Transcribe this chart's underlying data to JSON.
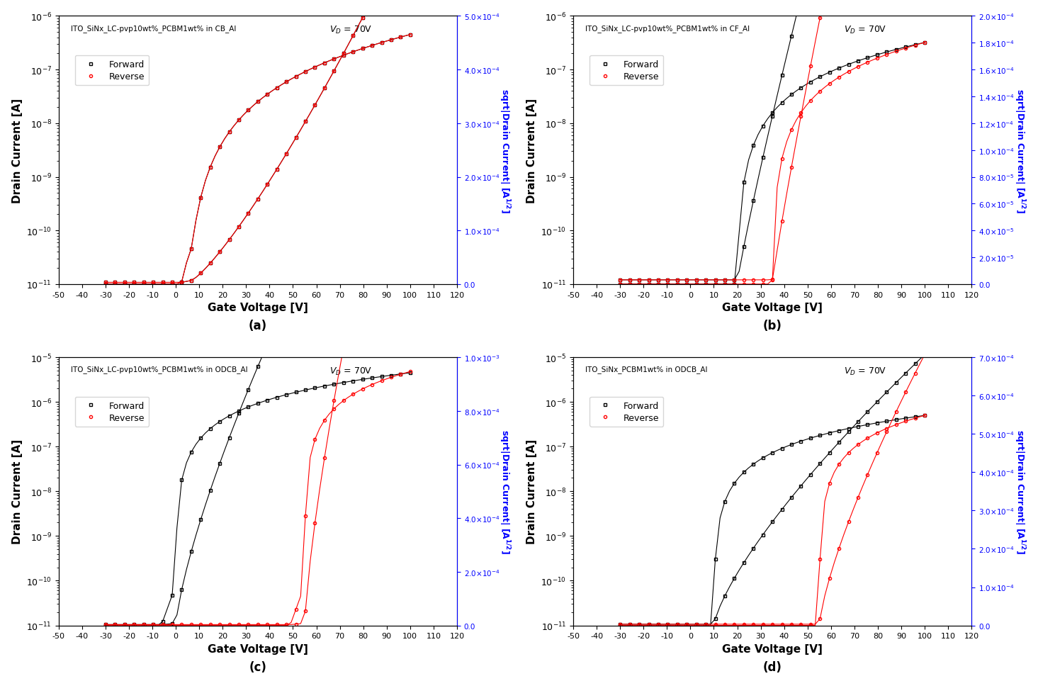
{
  "subplots": [
    {
      "label": "(a)",
      "title": "ITO_SiNx_LC-pvp10wt%_PCBM1wt% in CB_Al",
      "vd_text": "V_D = 70V",
      "ylim_log": [
        1e-11,
        1e-06
      ],
      "ylim_sqrt": [
        0.0,
        0.0005
      ],
      "sqrt_ticks": [
        0.0,
        0.0001,
        0.0002,
        0.0003,
        0.0004,
        0.0005
      ],
      "sqrt_tick_labels": [
        "0.0",
        "1.0x10-4",
        "2.0x10-4",
        "3.0x10-4",
        "4.0x10-4",
        "5.0x10-4"
      ]
    },
    {
      "label": "(b)",
      "title": "ITO_SiNx_LC-pvp10wt%_PCBM1wt% in CF_Al",
      "vd_text": "V_D = 70V",
      "ylim_log": [
        1e-11,
        1e-06
      ],
      "ylim_sqrt": [
        0.0,
        0.0002
      ],
      "sqrt_ticks": [
        0.0,
        2e-05,
        4e-05,
        6e-05,
        8e-05,
        0.0001,
        0.00012,
        0.00014,
        0.00016,
        0.00018,
        0.0002
      ],
      "sqrt_tick_labels": [
        "0.0",
        "2.0x10-5",
        "4.0x10-5",
        "6.0x10-5",
        "8.0x10-5",
        "1.0x10-4",
        "1.2x10-4",
        "1.4x10-4",
        "1.6x10-4",
        "1.8x10-4",
        "2.0x10-4"
      ]
    },
    {
      "label": "(c)",
      "title": "ITO_SiNx_LC-pvp10wt%_PCBM1wt% in ODCB_Al",
      "vd_text": "V_D = 70V",
      "ylim_log": [
        1e-11,
        1e-05
      ],
      "ylim_sqrt": [
        0.0,
        0.001
      ],
      "sqrt_ticks": [
        0.0,
        0.0002,
        0.0004,
        0.0006,
        0.0008,
        0.001
      ],
      "sqrt_tick_labels": [
        "0.0",
        "2.0x10-4",
        "4.0x10-4",
        "6.0x10-4",
        "8.0x10-4",
        "1.0x10-3"
      ]
    },
    {
      "label": "(d)",
      "title": "ITO_SiNx_PCBM1wt% in ODCB_Al",
      "vd_text": "V_D = 70V",
      "ylim_log": [
        1e-11,
        1e-05
      ],
      "ylim_sqrt": [
        0.0,
        0.0007
      ],
      "sqrt_ticks": [
        0.0,
        0.0001,
        0.0002,
        0.0003,
        0.0004,
        0.0005,
        0.0006,
        0.0007
      ],
      "sqrt_tick_labels": [
        "0.0",
        "1.0x10-4",
        "2.0x10-4",
        "3.0x10-4",
        "4.0x10-4",
        "5.0x10-4",
        "6.0x10-4",
        "7.0x10-4"
      ]
    }
  ],
  "xlim": [
    -50,
    120
  ],
  "xticks": [
    -50,
    -40,
    -30,
    -20,
    -10,
    0,
    10,
    20,
    30,
    40,
    50,
    60,
    70,
    80,
    90,
    100,
    110,
    120
  ],
  "xlabel": "Gate Voltage [V]",
  "ylabel_left": "Drain Current [A]",
  "ylabel_right": "sqrt|Drain Current| [A^1/2]",
  "forward_color": "black",
  "reverse_color": "red",
  "forward_marker": "s",
  "reverse_marker": "o",
  "marker_size": 3,
  "linewidth": 0.8
}
